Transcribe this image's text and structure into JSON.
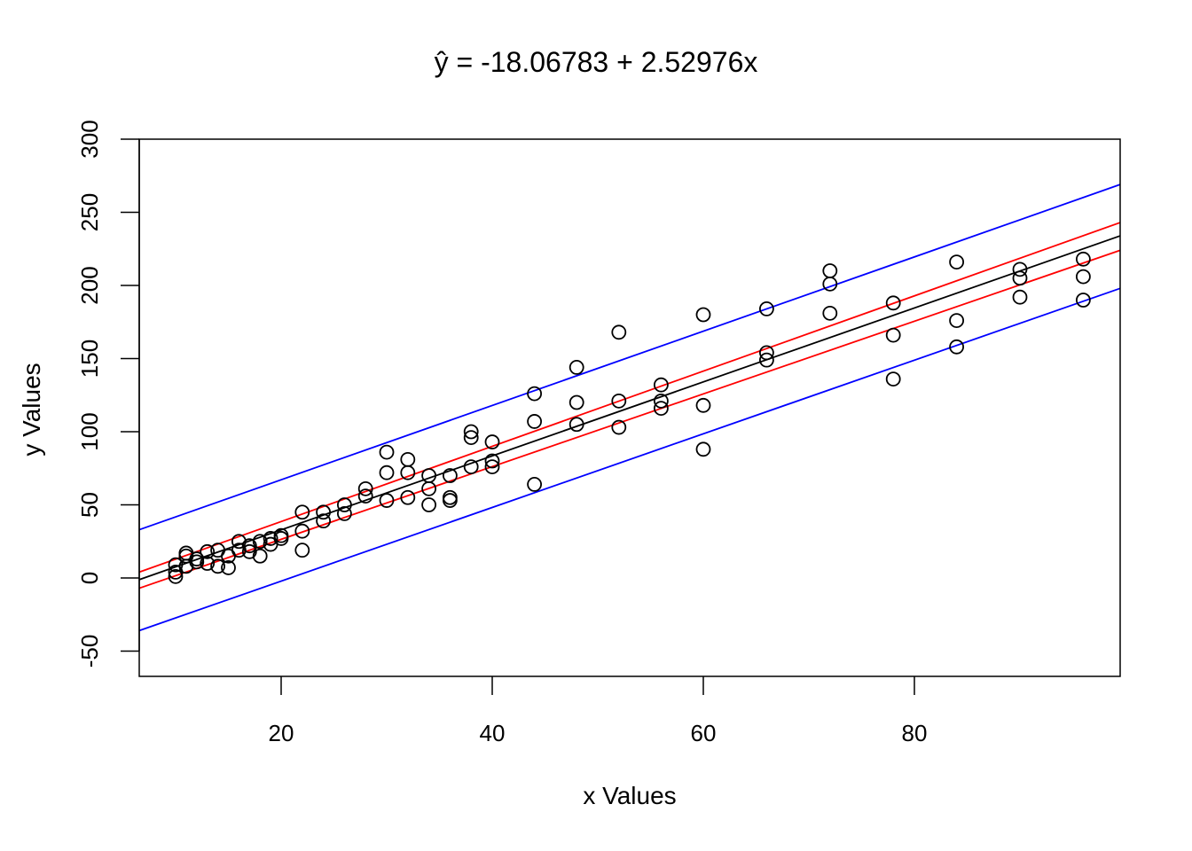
{
  "chart_data": {
    "type": "scatter",
    "title": "ŷ = -18.06783 + 2.52976x",
    "xlabel": "x Values",
    "ylabel": "y Values",
    "xlim": [
      6.7,
      99.6
    ],
    "ylim": [
      -67,
      300
    ],
    "xticks": [
      20,
      40,
      60,
      80
    ],
    "yticks": [
      -50,
      0,
      50,
      100,
      150,
      200,
      250,
      300
    ],
    "grid": false,
    "legend": null,
    "regression": {
      "intercept": -18.06783,
      "slope": 2.52976,
      "color": "#000000"
    },
    "confidence_band": {
      "color": "#ff0000",
      "lower_at_xmin": -7,
      "upper_at_xmin": 4,
      "lower_at_xmax": 224,
      "upper_at_xmax": 243
    },
    "prediction_band": {
      "color": "#0000ff",
      "lower_at_xmin": -36,
      "upper_at_xmin": 33,
      "lower_at_xmax": 198,
      "upper_at_xmax": 269
    },
    "points": [
      [
        10,
        9
      ],
      [
        10,
        1
      ],
      [
        10,
        4
      ],
      [
        11,
        17
      ],
      [
        11,
        15
      ],
      [
        11,
        8
      ],
      [
        12,
        13
      ],
      [
        12,
        11
      ],
      [
        13,
        18
      ],
      [
        13,
        10
      ],
      [
        14,
        19
      ],
      [
        14,
        8
      ],
      [
        15,
        15
      ],
      [
        15,
        7
      ],
      [
        16,
        25
      ],
      [
        16,
        19
      ],
      [
        17,
        22
      ],
      [
        17,
        18
      ],
      [
        18,
        25
      ],
      [
        18,
        15
      ],
      [
        19,
        27
      ],
      [
        19,
        23
      ],
      [
        20,
        29
      ],
      [
        20,
        27
      ],
      [
        22,
        45
      ],
      [
        22,
        32
      ],
      [
        22,
        19
      ],
      [
        24,
        45
      ],
      [
        24,
        39
      ],
      [
        26,
        50
      ],
      [
        26,
        44
      ],
      [
        28,
        61
      ],
      [
        28,
        56
      ],
      [
        30,
        86
      ],
      [
        30,
        72
      ],
      [
        30,
        53
      ],
      [
        32,
        81
      ],
      [
        32,
        72
      ],
      [
        32,
        55
      ],
      [
        34,
        70
      ],
      [
        34,
        61
      ],
      [
        34,
        50
      ],
      [
        36,
        70
      ],
      [
        36,
        55
      ],
      [
        36,
        53
      ],
      [
        38,
        100
      ],
      [
        38,
        96
      ],
      [
        38,
        76
      ],
      [
        40,
        93
      ],
      [
        40,
        80
      ],
      [
        40,
        76
      ],
      [
        44,
        126
      ],
      [
        44,
        107
      ],
      [
        44,
        64
      ],
      [
        48,
        144
      ],
      [
        48,
        120
      ],
      [
        48,
        105
      ],
      [
        52,
        168
      ],
      [
        52,
        121
      ],
      [
        52,
        103
      ],
      [
        56,
        132
      ],
      [
        56,
        121
      ],
      [
        56,
        116
      ],
      [
        60,
        180
      ],
      [
        60,
        118
      ],
      [
        60,
        88
      ],
      [
        66,
        184
      ],
      [
        66,
        154
      ],
      [
        66,
        149
      ],
      [
        72,
        210
      ],
      [
        72,
        201
      ],
      [
        72,
        181
      ],
      [
        78,
        188
      ],
      [
        78,
        166
      ],
      [
        78,
        136
      ],
      [
        84,
        216
      ],
      [
        84,
        176
      ],
      [
        84,
        158
      ],
      [
        90,
        211
      ],
      [
        90,
        205
      ],
      [
        90,
        192
      ],
      [
        96,
        218
      ],
      [
        96,
        206
      ],
      [
        96,
        190
      ]
    ]
  }
}
